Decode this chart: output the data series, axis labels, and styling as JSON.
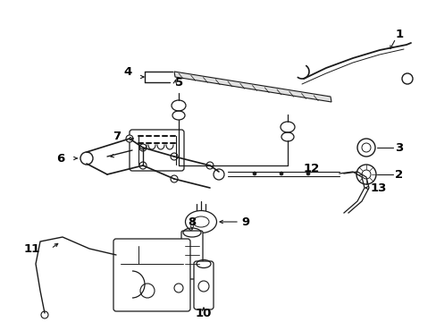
{
  "bg_color": "#ffffff",
  "line_color": "#1a1a1a",
  "label_color": "#000000",
  "label_fontsize": 9.5,
  "fig_width": 4.89,
  "fig_height": 3.6,
  "dpi": 100
}
